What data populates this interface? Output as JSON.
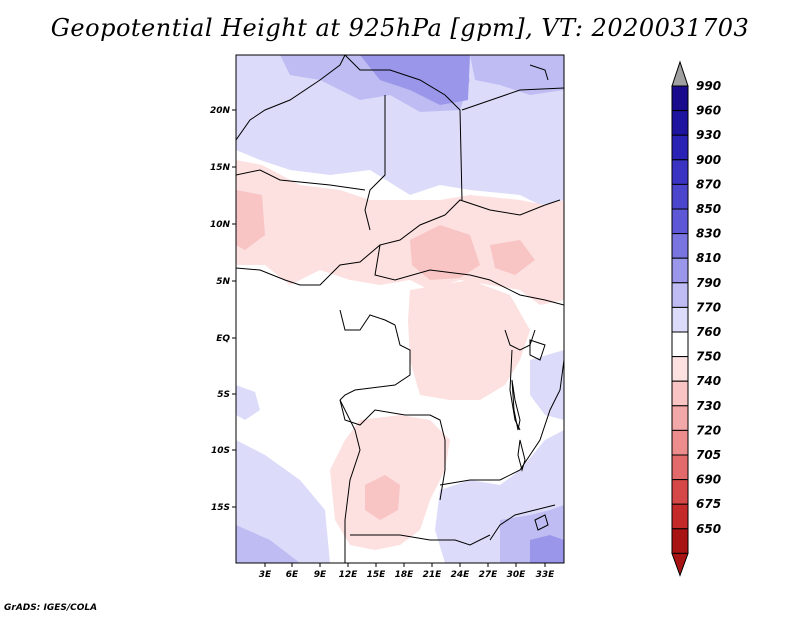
{
  "title": "Geopotential Height at 925hPa [gpm], VT: 2020031703",
  "credit": "GrADS: IGES/COLA",
  "map": {
    "lat_ticks": [
      "20N",
      "15N",
      "10N",
      "5N",
      "EQ",
      "5S",
      "10S",
      "15S"
    ],
    "lon_ticks": [
      "3E",
      "6E",
      "9E",
      "12E",
      "15E",
      "18E",
      "21E",
      "24E",
      "27E",
      "30E",
      "33E"
    ]
  },
  "colorbar": {
    "levels": [
      "990",
      "960",
      "930",
      "900",
      "870",
      "850",
      "830",
      "810",
      "790",
      "770",
      "760",
      "750",
      "740",
      "730",
      "720",
      "705",
      "690",
      "675",
      "650"
    ],
    "colors": [
      "#1a0a8c",
      "#1f14a0",
      "#2a22b4",
      "#3b34c2",
      "#4c46cc",
      "#5e58d6",
      "#7a74e0",
      "#9a96ea",
      "#bebcf2",
      "#dcdcfa",
      "#ffffff",
      "#fde0e0",
      "#f8c4c4",
      "#f2a8a8",
      "#ec8c8c",
      "#e26a6a",
      "#d64848",
      "#c42a2a",
      "#a81414"
    ],
    "top_arrow_color": "#a0a0a0",
    "bottom_arrow_color": "#a81414"
  }
}
